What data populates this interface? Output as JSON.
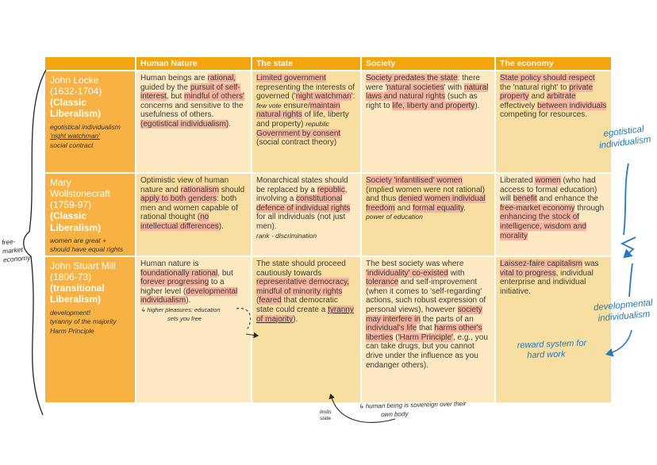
{
  "header": {
    "columns": [
      "Human Nature",
      "The state",
      "Society",
      "The economy"
    ]
  },
  "colors": {
    "header_orange": "#F2A50C",
    "thinker_orange": "#F8B243",
    "cell_light": "#FCE8C1",
    "cell_dark": "#F8DEA0",
    "highlight": "#F4B4A0",
    "pen_blue": "#2579BE"
  },
  "rows": [
    {
      "name": "John Locke",
      "dates": "(1632-1704)",
      "school": "(Classic Liberalism)",
      "notes": [
        "egotistical individualism",
        "'night watchman'",
        "social contract"
      ],
      "human_nature": [
        {
          "t": "Human beings are "
        },
        {
          "t": "rational,",
          "h": 1
        },
        {
          "t": " guided by the "
        },
        {
          "t": "pursuit of self-interest",
          "h": 1
        },
        {
          "t": ", but "
        },
        {
          "t": "mindful of others'",
          "h": 1
        },
        {
          "t": " concerns and sensitive to the usefulness of others. "
        },
        {
          "t": "(egotistical individualism)",
          "h": 1
        },
        {
          "t": "."
        }
      ],
      "state": [
        {
          "t": "Limited government",
          "h": 1
        },
        {
          "t": " representing the interests of governed ('"
        },
        {
          "t": "night watchman",
          "h": 1
        },
        {
          "t": "':  "
        },
        {
          "t": "few vote",
          "hand": 1
        },
        {
          "t": "  ensure/"
        },
        {
          "t": "maintain natural rights",
          "h": 1
        },
        {
          "t": " of life, liberty and property)  "
        },
        {
          "t": "republic",
          "hand": 1
        },
        {
          "t": "  "
        },
        {
          "t": "Government by consent",
          "h": 1
        },
        {
          "t": " (social contract theory)"
        }
      ],
      "society": [
        {
          "t": "Society predates the state",
          "h": 1
        },
        {
          "t": ": there were '"
        },
        {
          "t": "natural societies",
          "h": 1
        },
        {
          "t": "' with "
        },
        {
          "t": "natural laws and natural rights",
          "h": 1
        },
        {
          "t": " (such as right to "
        },
        {
          "t": "life, liberty and property",
          "h": 1
        },
        {
          "t": ")."
        }
      ],
      "economy": [
        {
          "t": "State policy should respect",
          "h": 1
        },
        {
          "t": " the 'natural right' to "
        },
        {
          "t": "private property",
          "h": 1
        },
        {
          "t": " and "
        },
        {
          "t": "arbitrate",
          "h": 1
        },
        {
          "t": " effectively "
        },
        {
          "t": "between individuals",
          "h": 1
        },
        {
          "t": " competing for resources."
        }
      ],
      "state_note": "",
      "society_note": ""
    },
    {
      "name": "Mary Wollstonecraft",
      "dates": "(1759-97)",
      "school": "(Classic Liberalism)",
      "notes": [
        "women are great +",
        "should have equal rights"
      ],
      "human_nature": [
        {
          "t": "Optimistic view of human nature and "
        },
        {
          "t": "rationalism",
          "h": 1
        },
        {
          "t": " should "
        },
        {
          "t": "apply to both genders",
          "h": 1
        },
        {
          "t": ": both men and women capable of rational thought ("
        },
        {
          "t": "no intellectual differences",
          "h": 1
        },
        {
          "t": ")."
        }
      ],
      "state": [
        {
          "t": "Monarchical states should be replaced by a "
        },
        {
          "t": "republic",
          "h": 1
        },
        {
          "t": ", involving a "
        },
        {
          "t": "constitutional defence of individual rights",
          "h": 1
        },
        {
          "t": " for all individuals (not just men)."
        }
      ],
      "society": [
        {
          "t": "Society 'infantilised' women",
          "h": 1
        },
        {
          "t": " (implied women were not rational) and thus "
        },
        {
          "t": "denied women individual freedom",
          "h": 1
        },
        {
          "t": " and "
        },
        {
          "t": "formal equality",
          "h": 1
        },
        {
          "t": "."
        }
      ],
      "economy": [
        {
          "t": "Liberated "
        },
        {
          "t": "women",
          "h": 1
        },
        {
          "t": " (who had access to formal education) will "
        },
        {
          "t": "benefit",
          "h": 1
        },
        {
          "t": " and enhance the "
        },
        {
          "t": "free-market economy",
          "h": 1
        },
        {
          "t": " through "
        },
        {
          "t": "enhancing the stock of intelligence, wisdom and morality",
          "h": 1
        }
      ],
      "state_note": "rank - discrimination",
      "society_note": "power of education"
    },
    {
      "name": "John Stuart Mill",
      "dates": "(1806-73)",
      "school": "(transitional Liberalism)",
      "notes": [
        "development!",
        "tyranny of the majority",
        "Harm Principle"
      ],
      "human_nature": [
        {
          "t": "Human nature is "
        },
        {
          "t": "foundationally rational",
          "h": 1
        },
        {
          "t": ", but "
        },
        {
          "t": "forever progressing",
          "h": 1
        },
        {
          "t": " to a higher level ("
        },
        {
          "t": "developmental individualism",
          "h": 1
        },
        {
          "t": ")."
        }
      ],
      "state": [
        {
          "t": "The state should proceed cautiously towards "
        },
        {
          "t": "representative democracy, mindful of minority rights",
          "h": 1
        },
        {
          "t": " ("
        },
        {
          "t": "feared",
          "h": 1
        },
        {
          "t": " that democratic state could create a "
        },
        {
          "t": "tyranny of majority",
          "h": 1,
          "u": 1
        },
        {
          "t": ")."
        }
      ],
      "society": [
        {
          "t": "The best society was where "
        },
        {
          "t": "'individuality' co-existed",
          "h": 1
        },
        {
          "t": " with "
        },
        {
          "t": "tolerance",
          "h": 1
        },
        {
          "t": " and self-improvement (when it comes to 'self-regarding' actions, such robust expression of personal views), however "
        },
        {
          "t": "society may interfere in",
          "h": 1
        },
        {
          "t": " the parts of an "
        },
        {
          "t": "individual's life",
          "h": 1
        },
        {
          "t": " that "
        },
        {
          "t": "harms other's liberties",
          "h": 1
        },
        {
          "t": " ("
        },
        {
          "t": "'Harm Principle'",
          "h": 1
        },
        {
          "t": ", e.g., you can take drugs, but you cannot drive under the influence as you endanger others)."
        }
      ],
      "economy": [
        {
          "t": "Laissez-faire capitalism",
          "h": 1
        },
        {
          "t": " was "
        },
        {
          "t": "vital to progress",
          "h": 1
        },
        {
          "t": ", individual enterprise and individual initiative."
        }
      ],
      "state_note": "",
      "society_note": ""
    }
  ],
  "margin_notes": {
    "free_market": [
      "free-",
      "market",
      "economy"
    ],
    "egotistical": [
      "egotistical",
      "individualism"
    ],
    "developmental": [
      "developmental",
      "individualism"
    ],
    "reward": [
      "reward system for",
      "hard work"
    ],
    "higher_pleasures": [
      "↳ higher pleasures: education",
      "sets you free"
    ],
    "sovereign": [
      "↳ human being is sovereign over their",
      "own body"
    ],
    "limits": [
      "limits",
      "state"
    ]
  }
}
